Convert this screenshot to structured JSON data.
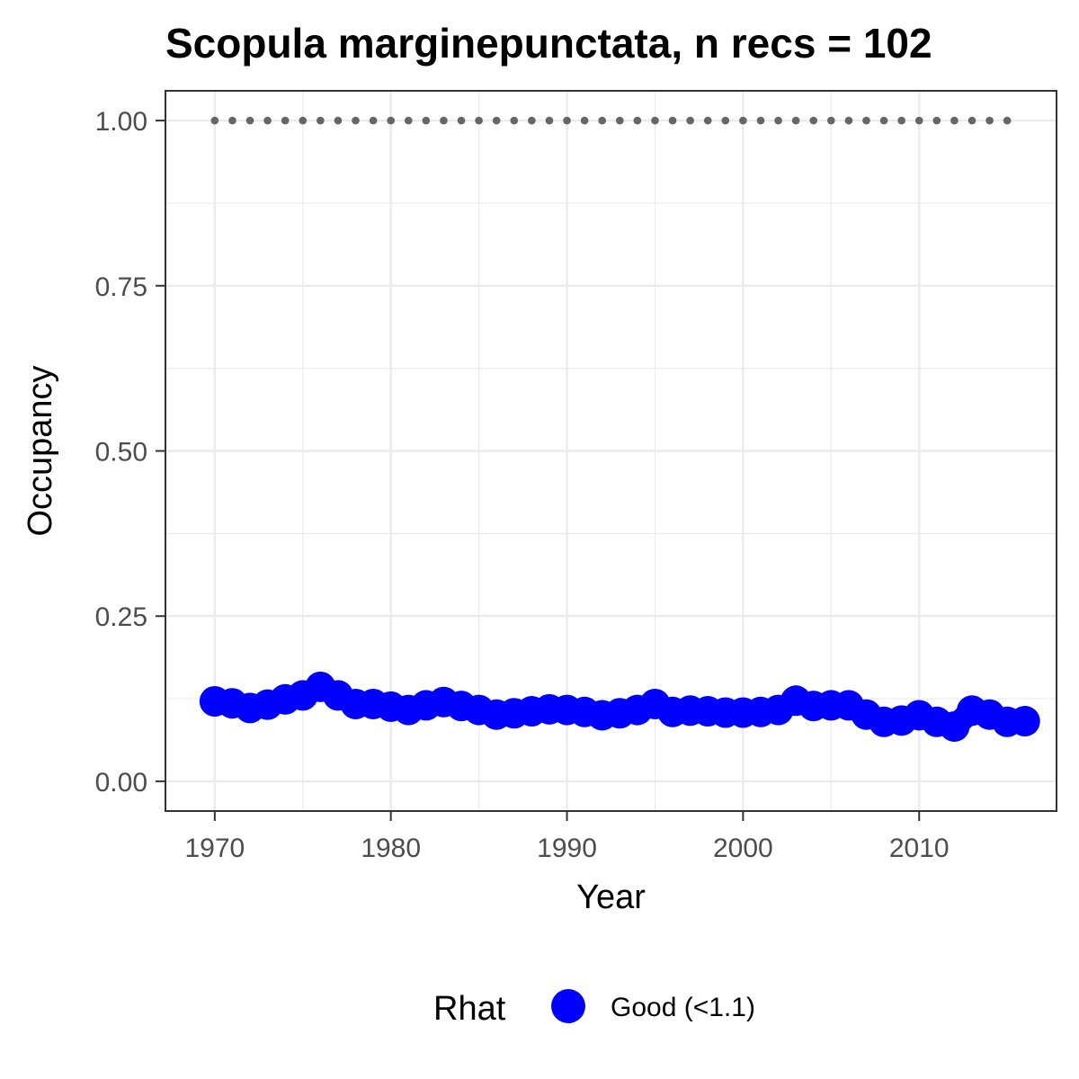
{
  "chart_data": {
    "type": "line",
    "title": "Scopula marginepunctata, n recs = 102",
    "xlabel": "Year",
    "ylabel": "Occupancy",
    "xlim": [
      1967.2,
      2017.8
    ],
    "ylim": [
      -0.045,
      1.045
    ],
    "x_ticks": [
      {
        "value": 1970,
        "label": "1970"
      },
      {
        "value": 1980,
        "label": "1980"
      },
      {
        "value": 1990,
        "label": "1990"
      },
      {
        "value": 2000,
        "label": "2000"
      },
      {
        "value": 2010,
        "label": "2010"
      }
    ],
    "y_ticks": [
      {
        "value": 0,
        "label": "0.00"
      },
      {
        "value": 0.25,
        "label": "0.25"
      },
      {
        "value": 0.5,
        "label": "0.50"
      },
      {
        "value": 0.75,
        "label": "0.75"
      },
      {
        "value": 1,
        "label": "1.00"
      }
    ],
    "grid": true,
    "series": [
      {
        "name": "Good (<1.1)",
        "color": "#0000ff",
        "x": [
          1970,
          1971,
          1972,
          1973,
          1974,
          1975,
          1976,
          1977,
          1978,
          1979,
          1980,
          1981,
          1982,
          1983,
          1984,
          1985,
          1986,
          1987,
          1988,
          1989,
          1990,
          1991,
          1992,
          1993,
          1994,
          1995,
          1996,
          1997,
          1998,
          1999,
          2000,
          2001,
          2002,
          2003,
          2004,
          2005,
          2006,
          2007,
          2008,
          2009,
          2010,
          2011,
          2012,
          2013,
          2014,
          2015,
          2016
        ],
        "y": [
          0.121,
          0.118,
          0.111,
          0.116,
          0.124,
          0.13,
          0.143,
          0.13,
          0.117,
          0.117,
          0.113,
          0.108,
          0.115,
          0.12,
          0.114,
          0.108,
          0.101,
          0.103,
          0.106,
          0.109,
          0.108,
          0.105,
          0.1,
          0.103,
          0.108,
          0.117,
          0.105,
          0.107,
          0.106,
          0.104,
          0.104,
          0.105,
          0.108,
          0.122,
          0.114,
          0.115,
          0.115,
          0.101,
          0.09,
          0.092,
          0.1,
          0.09,
          0.083,
          0.107,
          0.101,
          0.09,
          0.091
        ]
      },
      {
        "name": "",
        "style": "dotted",
        "color": "#666666",
        "x": [
          1970,
          2015
        ],
        "y": [
          1,
          1
        ]
      }
    ],
    "legend": {
      "position": "bottom",
      "title": "Rhat",
      "entries": [
        {
          "label": "Good (<1.1)",
          "color": "#0000ff"
        }
      ]
    }
  }
}
